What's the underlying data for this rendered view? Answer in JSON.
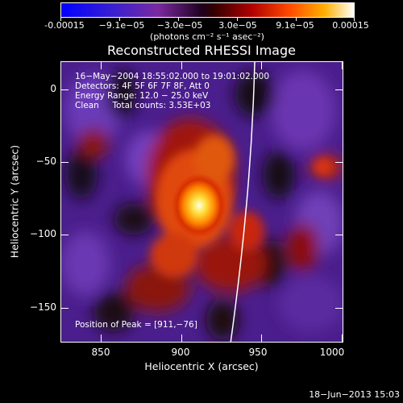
{
  "colorbar": {
    "ticks": [
      "-0.00015",
      "−9.1e−05",
      "−3.0e−05",
      "3.0e−05",
      "9.1e−05",
      "0.00015"
    ],
    "units": "(photons cm⁻² s⁻¹ asec⁻²)"
  },
  "title": "Reconstructed RHESSI Image",
  "info": {
    "time_range": "16−May−2004 18:55:02.000 to 19:01:02.000",
    "detectors": "Detectors: 4F 5F 6F 7F 8F, Att 0",
    "energy": "Energy Range: 12.0 − 25.0 keV",
    "method": "Clean     Total counts: 3.53E+03",
    "peak": "Position of Peak = [911,−76]"
  },
  "axes": {
    "x_title": "Heliocentric X (arcsec)",
    "y_title": "Heliocentric Y (arcsec)",
    "x_ticks": [
      "850",
      "900",
      "950",
      "1000"
    ],
    "y_ticks": [
      "0",
      "−50",
      "−100",
      "−150"
    ]
  },
  "datestamp": "18−Jun−2013 15:03"
}
